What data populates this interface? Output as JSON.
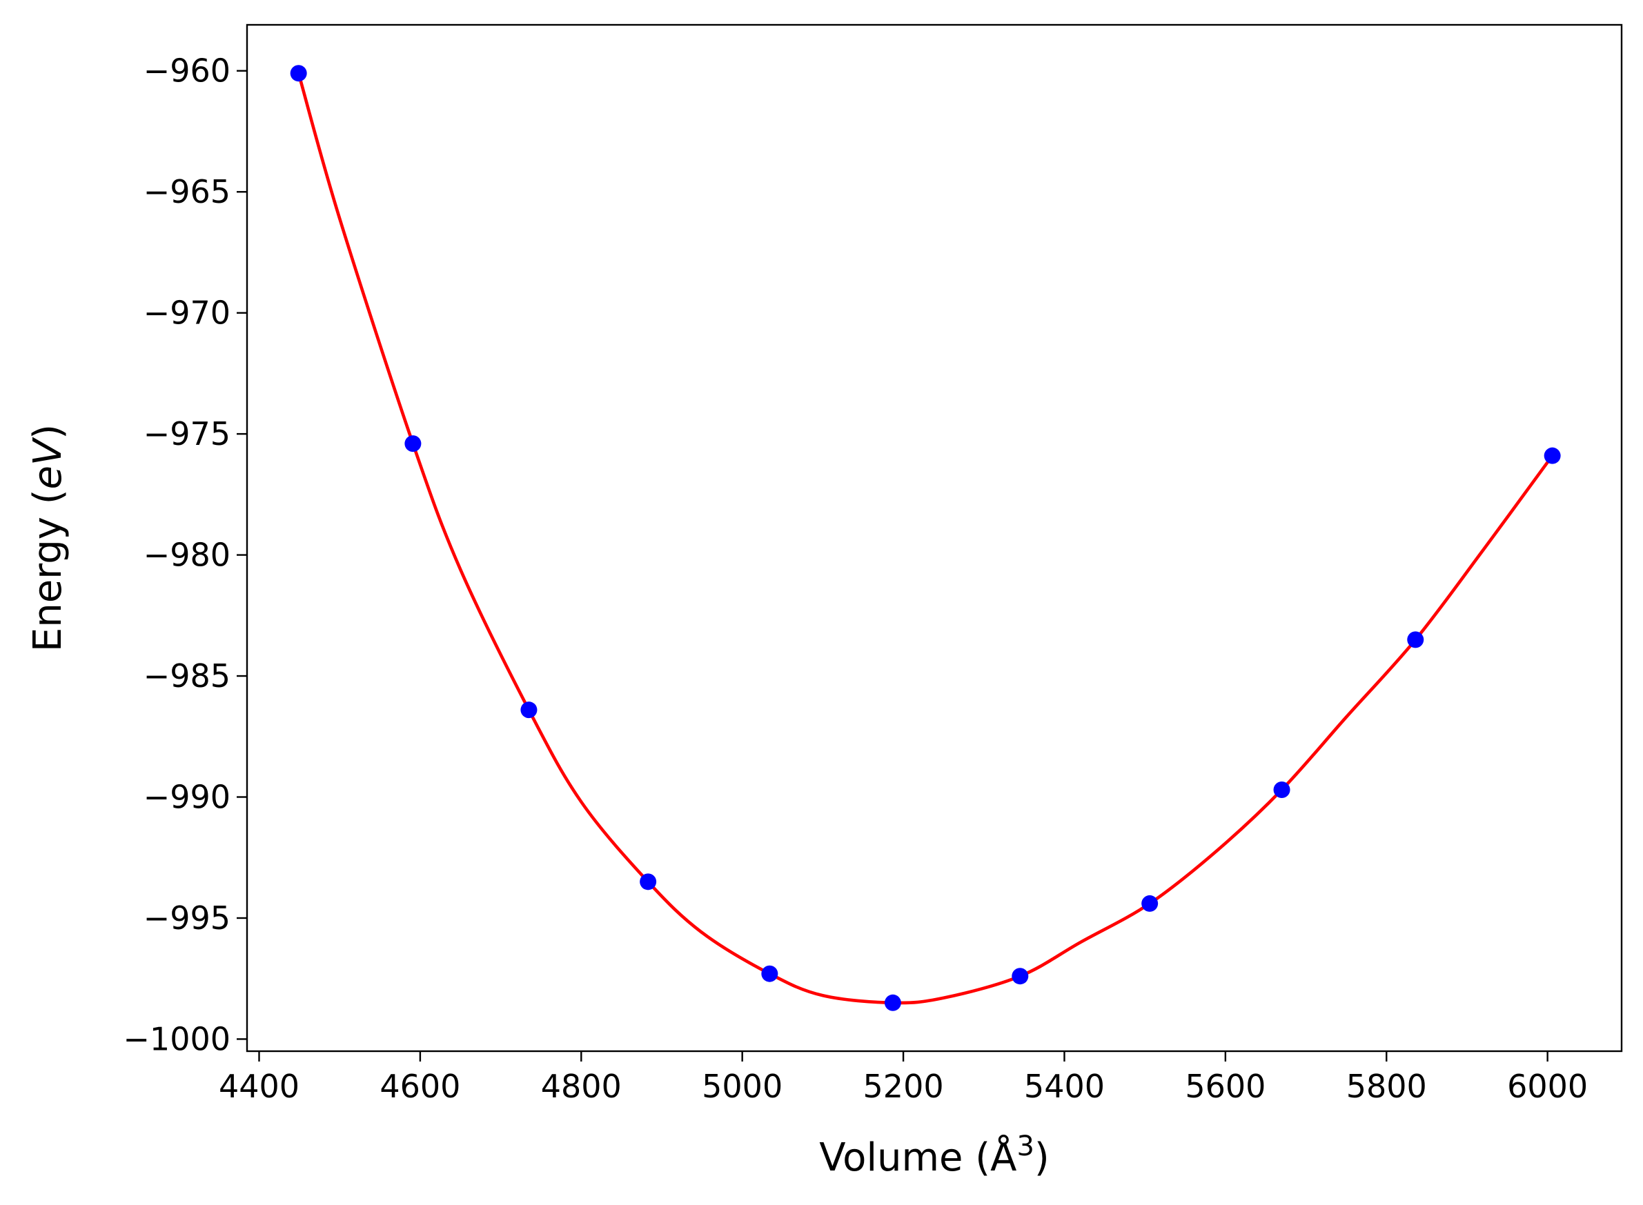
{
  "chart_data": {
    "type": "scatter",
    "title": "",
    "xlabel": "Volume (Å",
    "xlabel_exponent": "3",
    "xlabel_close": ")",
    "ylabel": "Energy (",
    "ylabel_italic": "eV",
    "ylabel_close": ")",
    "xlim": [
      4385,
      6092
    ],
    "ylim": [
      -1000.5,
      -958.1
    ],
    "xticks": [
      4400,
      4600,
      4800,
      5000,
      5200,
      5400,
      5600,
      5800,
      6000
    ],
    "xtick_labels": [
      "4400",
      "4600",
      "4800",
      "5000",
      "5200",
      "5400",
      "5600",
      "5800",
      "6000"
    ],
    "yticks": [
      -960,
      -965,
      -970,
      -975,
      -980,
      -985,
      -990,
      -995,
      -1000
    ],
    "ytick_labels": [
      "−960",
      "−965",
      "−970",
      "−975",
      "−980",
      "−985",
      "−990",
      "−995",
      "−1000"
    ],
    "grid": false,
    "series": [
      {
        "kind": "points",
        "color": "#0000ff",
        "x": [
          4449,
          4591,
          4735,
          4883,
          5034,
          5187,
          5345,
          5506,
          5670,
          5836,
          6006
        ],
        "y": [
          -960.1,
          -975.4,
          -986.4,
          -993.5,
          -997.3,
          -998.5,
          -997.4,
          -994.4,
          -989.7,
          -983.5,
          -975.9
        ]
      },
      {
        "kind": "fit-curve",
        "color": "#ff0000",
        "x": [
          4449,
          4500,
          4591,
          4650,
          4735,
          4800,
          4883,
          4950,
          5034,
          5100,
          5187,
          5250,
          5345,
          5420,
          5506,
          5590,
          5670,
          5750,
          5836,
          5920,
          6006
        ],
        "y": [
          -960.1,
          -966.1,
          -975.4,
          -980.6,
          -986.4,
          -990.2,
          -993.5,
          -995.6,
          -997.3,
          -998.2,
          -998.5,
          -998.3,
          -997.4,
          -996.0,
          -994.4,
          -992.2,
          -989.7,
          -986.7,
          -983.5,
          -979.8,
          -975.9
        ]
      }
    ]
  }
}
